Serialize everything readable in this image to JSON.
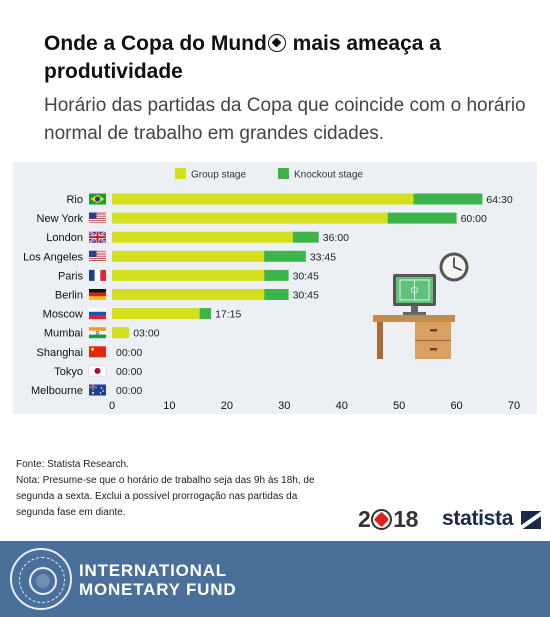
{
  "header": {
    "title_part1": "Onde a Copa do Mund",
    "title_part2": " mais ameaça a produtividade",
    "subtitle": "Horário das partidas da Copa que coincide com o horário normal de trabalho em grandes cidades."
  },
  "chart_data": {
    "type": "bar",
    "stacked": true,
    "orientation": "horizontal",
    "categories": [
      "Rio",
      "New York",
      "London",
      "Los Angeles",
      "Paris",
      "Berlin",
      "Moscow",
      "Mumbai",
      "Shanghai",
      "Tokyo",
      "Melbourne"
    ],
    "value_labels": [
      "64:30",
      "60:00",
      "36:00",
      "33:45",
      "30:45",
      "30:45",
      "17:15",
      "03:00",
      "00:00",
      "00:00",
      "00:00"
    ],
    "series": [
      {
        "name": "Group stage",
        "color": "#d4e01e",
        "values": [
          52.5,
          48.0,
          31.5,
          26.5,
          26.5,
          26.5,
          15.25,
          3.0,
          0,
          0,
          0
        ]
      },
      {
        "name": "Knockout stage",
        "color": "#3db44a",
        "values": [
          12.0,
          12.0,
          4.5,
          7.25,
          4.25,
          4.25,
          2.0,
          0,
          0,
          0,
          0
        ]
      }
    ],
    "flags": [
      "brazil-flag",
      "usa-flag",
      "uk-flag",
      "usa-flag",
      "france-flag",
      "germany-flag",
      "russia-flag",
      "india-flag",
      "china-flag",
      "japan-flag",
      "australia-flag"
    ],
    "xlim": [
      0,
      70
    ],
    "xticks": [
      0,
      10,
      20,
      30,
      40,
      50,
      60,
      70
    ],
    "legend_position": "top",
    "grid": false
  },
  "footnote": {
    "source": "Fonte: Statista Research.",
    "note": "Nota: Presume-se que o horário de trabalho seja das 9h às 18h, de segunda a sexta. Exclui a possível prorrogação nas partidas da segunda fase em diante."
  },
  "branding": {
    "logo_2018_a": "2",
    "logo_2018_b": "18",
    "statista": "statista",
    "imf_line1": "INTERNATIONAL",
    "imf_line2": "MONETARY FUND",
    "imf_seal_text": "INTERNATIONAL MONETARY FUND"
  }
}
